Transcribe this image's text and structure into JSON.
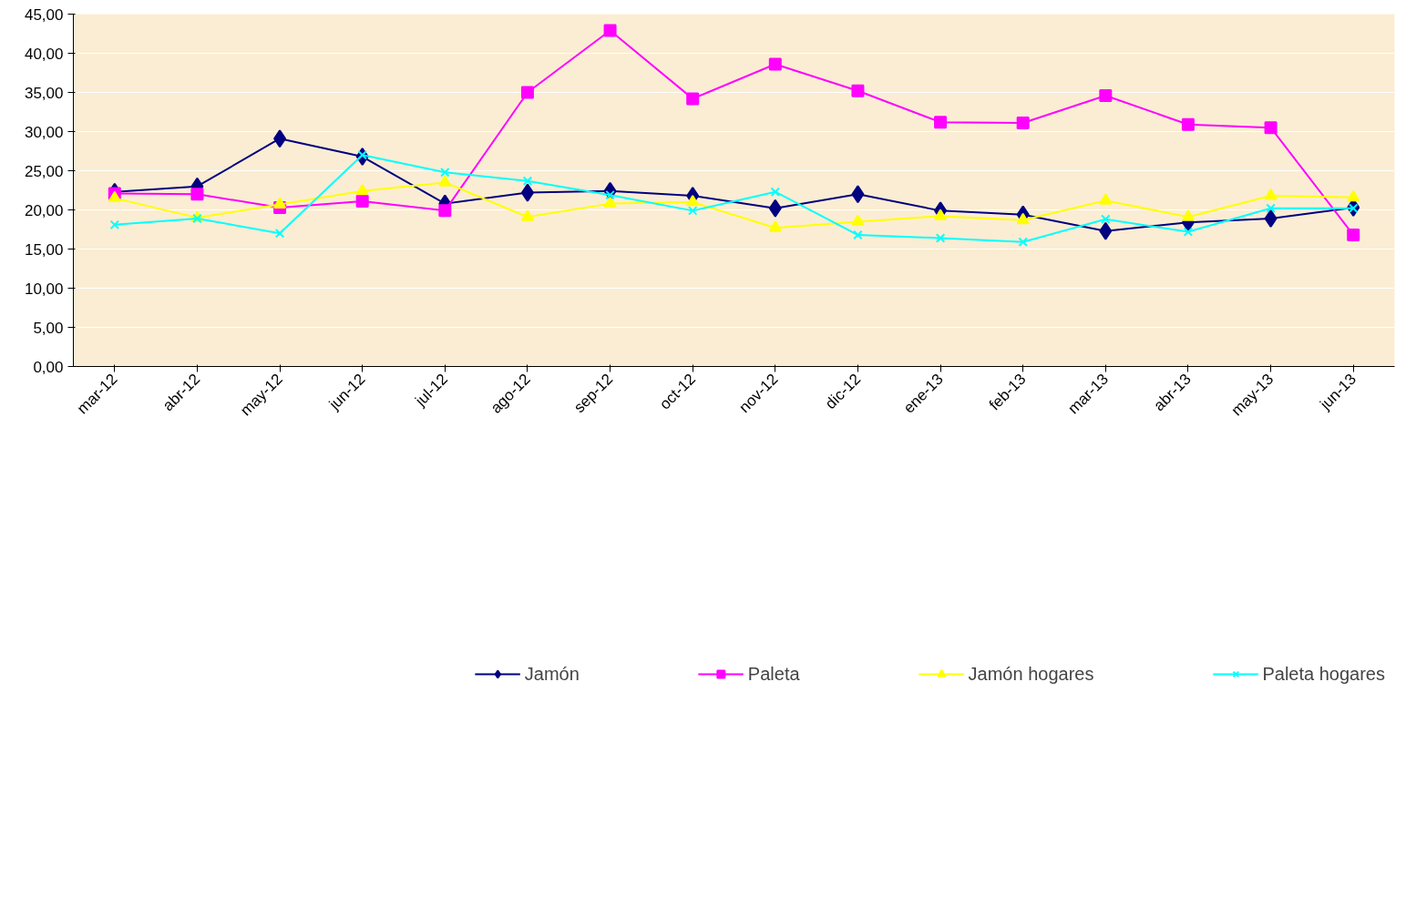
{
  "chart_data": {
    "type": "line",
    "categories": [
      "mar-12",
      "abr-12",
      "may-12",
      "jun-12",
      "jul-12",
      "ago-12",
      "sep-12",
      "oct-12",
      "nov-12",
      "dic-12",
      "ene-13",
      "feb-13",
      "mar-13",
      "abr-13",
      "may-13",
      "jun-13"
    ],
    "series": [
      {
        "name": "Jamón",
        "color": "#000080",
        "marker": "diamond",
        "values": [
          22.3,
          23.0,
          29.1,
          26.8,
          20.8,
          22.2,
          22.4,
          21.8,
          20.2,
          22.0,
          19.9,
          19.4,
          17.3,
          18.4,
          18.9,
          20.3
        ]
      },
      {
        "name": "Paleta",
        "color": "#ff00ff",
        "marker": "square",
        "values": [
          22.1,
          22.0,
          20.3,
          21.1,
          19.9,
          35.0,
          42.9,
          34.2,
          38.6,
          35.2,
          31.2,
          31.1,
          34.6,
          30.9,
          30.5,
          16.8
        ]
      },
      {
        "name": "Jamón hogares",
        "color": "#ffff00",
        "marker": "triangle",
        "values": [
          21.5,
          19.0,
          20.7,
          22.4,
          23.5,
          19.1,
          20.8,
          21.0,
          17.7,
          18.5,
          19.2,
          18.7,
          21.2,
          19.1,
          21.8,
          21.6
        ]
      },
      {
        "name": "Paleta hogares",
        "color": "#00ffff",
        "marker": "cross",
        "values": [
          18.1,
          18.9,
          17.0,
          27.0,
          24.8,
          23.7,
          21.9,
          19.9,
          22.3,
          16.8,
          16.4,
          15.9,
          18.8,
          17.2,
          20.2,
          20.2
        ]
      }
    ],
    "ylim": [
      0,
      45
    ],
    "yticks": [
      {
        "value": 0,
        "label": "0,00"
      },
      {
        "value": 5,
        "label": "5,00"
      },
      {
        "value": 10,
        "label": "10,00"
      },
      {
        "value": 15,
        "label": "15,00"
      },
      {
        "value": 20,
        "label": "20,00"
      },
      {
        "value": 25,
        "label": "25,00"
      },
      {
        "value": 30,
        "label": "30,00"
      },
      {
        "value": 35,
        "label": "35,00"
      },
      {
        "value": 40,
        "label": "40,00"
      },
      {
        "value": 45,
        "label": "45,00"
      }
    ],
    "grid": "y",
    "legend": "bottom",
    "line_style": "solid"
  }
}
